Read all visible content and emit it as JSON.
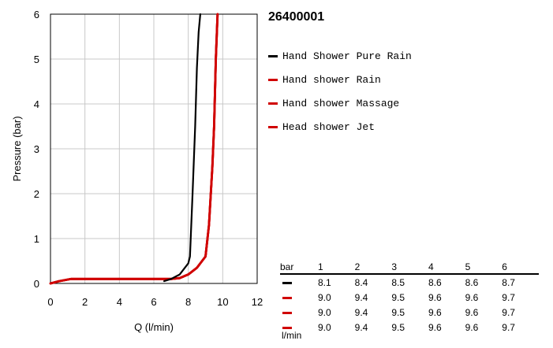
{
  "chart_data": {
    "type": "line",
    "xlabel": "Q (l/min)",
    "ylabel": "Pressure (bar)",
    "xlim": [
      0,
      12
    ],
    "ylim": [
      0,
      6
    ],
    "xticks": [
      "0",
      "2",
      "4",
      "6",
      "8",
      "10",
      "12"
    ],
    "yticks": [
      "0",
      "1",
      "2",
      "3",
      "4",
      "5",
      "6"
    ],
    "grid": true,
    "series": [
      {
        "name": "Hand Shower Pure Rain",
        "color": "#000000",
        "points": [
          [
            6.6,
            0.05
          ],
          [
            7.0,
            0.1
          ],
          [
            7.5,
            0.2
          ],
          [
            8.0,
            0.45
          ],
          [
            8.1,
            0.6
          ],
          [
            8.25,
            2.0
          ],
          [
            8.4,
            3.5
          ],
          [
            8.5,
            4.8
          ],
          [
            8.6,
            5.6
          ],
          [
            8.7,
            6.0
          ]
        ]
      },
      {
        "name": "Hand shower Rain",
        "color": "#d00000",
        "points": [
          [
            0,
            0.0
          ],
          [
            0.5,
            0.05
          ],
          [
            1.2,
            0.1
          ],
          [
            6.0,
            0.1
          ],
          [
            7.0,
            0.1
          ],
          [
            7.5,
            0.12
          ],
          [
            8.0,
            0.2
          ],
          [
            8.5,
            0.35
          ],
          [
            9.0,
            0.6
          ],
          [
            9.2,
            1.3
          ],
          [
            9.4,
            2.6
          ],
          [
            9.5,
            3.5
          ],
          [
            9.6,
            5.0
          ],
          [
            9.7,
            6.0
          ]
        ]
      },
      {
        "name": "Hand shower Massage",
        "color": "#d00000",
        "points": [
          [
            0,
            0.0
          ],
          [
            0.5,
            0.05
          ],
          [
            1.2,
            0.1
          ],
          [
            6.0,
            0.1
          ],
          [
            7.0,
            0.1
          ],
          [
            7.5,
            0.12
          ],
          [
            8.0,
            0.2
          ],
          [
            8.5,
            0.35
          ],
          [
            9.0,
            0.6
          ],
          [
            9.2,
            1.3
          ],
          [
            9.4,
            2.6
          ],
          [
            9.5,
            3.5
          ],
          [
            9.6,
            5.0
          ],
          [
            9.7,
            6.0
          ]
        ]
      },
      {
        "name": "Head shower Jet",
        "color": "#d00000",
        "points": [
          [
            0,
            0.0
          ],
          [
            0.5,
            0.05
          ],
          [
            1.2,
            0.1
          ],
          [
            6.0,
            0.1
          ],
          [
            7.0,
            0.1
          ],
          [
            7.5,
            0.12
          ],
          [
            8.0,
            0.2
          ],
          [
            8.5,
            0.35
          ],
          [
            9.0,
            0.6
          ],
          [
            9.2,
            1.3
          ],
          [
            9.4,
            2.6
          ],
          [
            9.5,
            3.5
          ],
          [
            9.6,
            5.0
          ],
          [
            9.7,
            6.0
          ]
        ]
      }
    ]
  },
  "model_number": "26400001",
  "table": {
    "unit_top": "bar",
    "unit_bottom": "l/min",
    "pressures": [
      "1",
      "2",
      "3",
      "4",
      "5",
      "6"
    ],
    "rows": [
      {
        "color": "#000000",
        "values": [
          "8.1",
          "8.4",
          "8.5",
          "8.6",
          "8.6",
          "8.7"
        ]
      },
      {
        "color": "#d00000",
        "values": [
          "9.0",
          "9.4",
          "9.5",
          "9.6",
          "9.6",
          "9.7"
        ]
      },
      {
        "color": "#d00000",
        "values": [
          "9.0",
          "9.4",
          "9.5",
          "9.6",
          "9.6",
          "9.7"
        ]
      },
      {
        "color": "#d00000",
        "values": [
          "9.0",
          "9.4",
          "9.5",
          "9.6",
          "9.6",
          "9.7"
        ]
      }
    ]
  }
}
